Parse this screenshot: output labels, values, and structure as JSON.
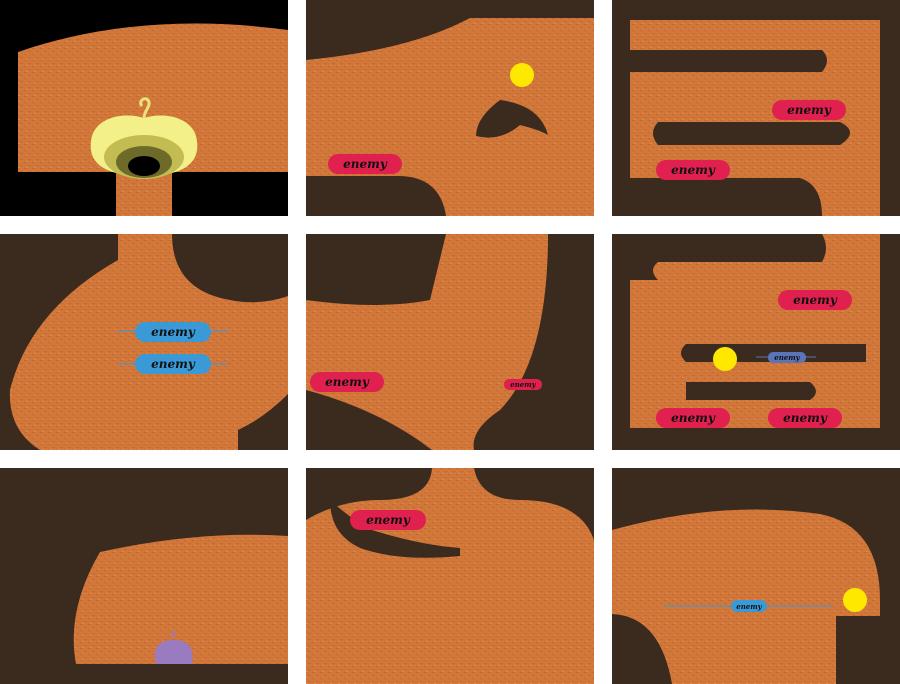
{
  "game": {
    "enemy_label": "enemy",
    "colors": {
      "ground": "#D2773A",
      "rock": "#3B2A1E",
      "void": "#000000",
      "gutter": "#FFFFFF",
      "enemy_red": "#E0204E",
      "enemy_blue": "#3A9AD8",
      "enemy_slate": "#5A74B8",
      "orb": "#FFE800",
      "apple": "#F3F08A",
      "apple_inner": "#6E6A2A",
      "blob": "#9A7BC0"
    },
    "panels": [
      {
        "label": "panel-1",
        "contents": [
          "apple-portal"
        ]
      },
      {
        "label": "panel-2",
        "contents": [
          "yellow-orb",
          "enemy-red"
        ]
      },
      {
        "label": "panel-3",
        "contents": [
          "enemy-red",
          "enemy-red"
        ]
      },
      {
        "label": "panel-4",
        "contents": [
          "enemy-blue-patrol",
          "enemy-blue-patrol"
        ]
      },
      {
        "label": "panel-5",
        "contents": [
          "enemy-red",
          "enemy-red-small"
        ]
      },
      {
        "label": "panel-6",
        "contents": [
          "enemy-red",
          "yellow-orb",
          "enemy-slate-patrol",
          "enemy-red",
          "enemy-red"
        ]
      },
      {
        "label": "panel-7",
        "contents": [
          "purple-blob"
        ]
      },
      {
        "label": "panel-8",
        "contents": [
          "enemy-red"
        ]
      },
      {
        "label": "panel-9",
        "contents": [
          "enemy-blue-patrol",
          "yellow-orb"
        ]
      }
    ]
  }
}
